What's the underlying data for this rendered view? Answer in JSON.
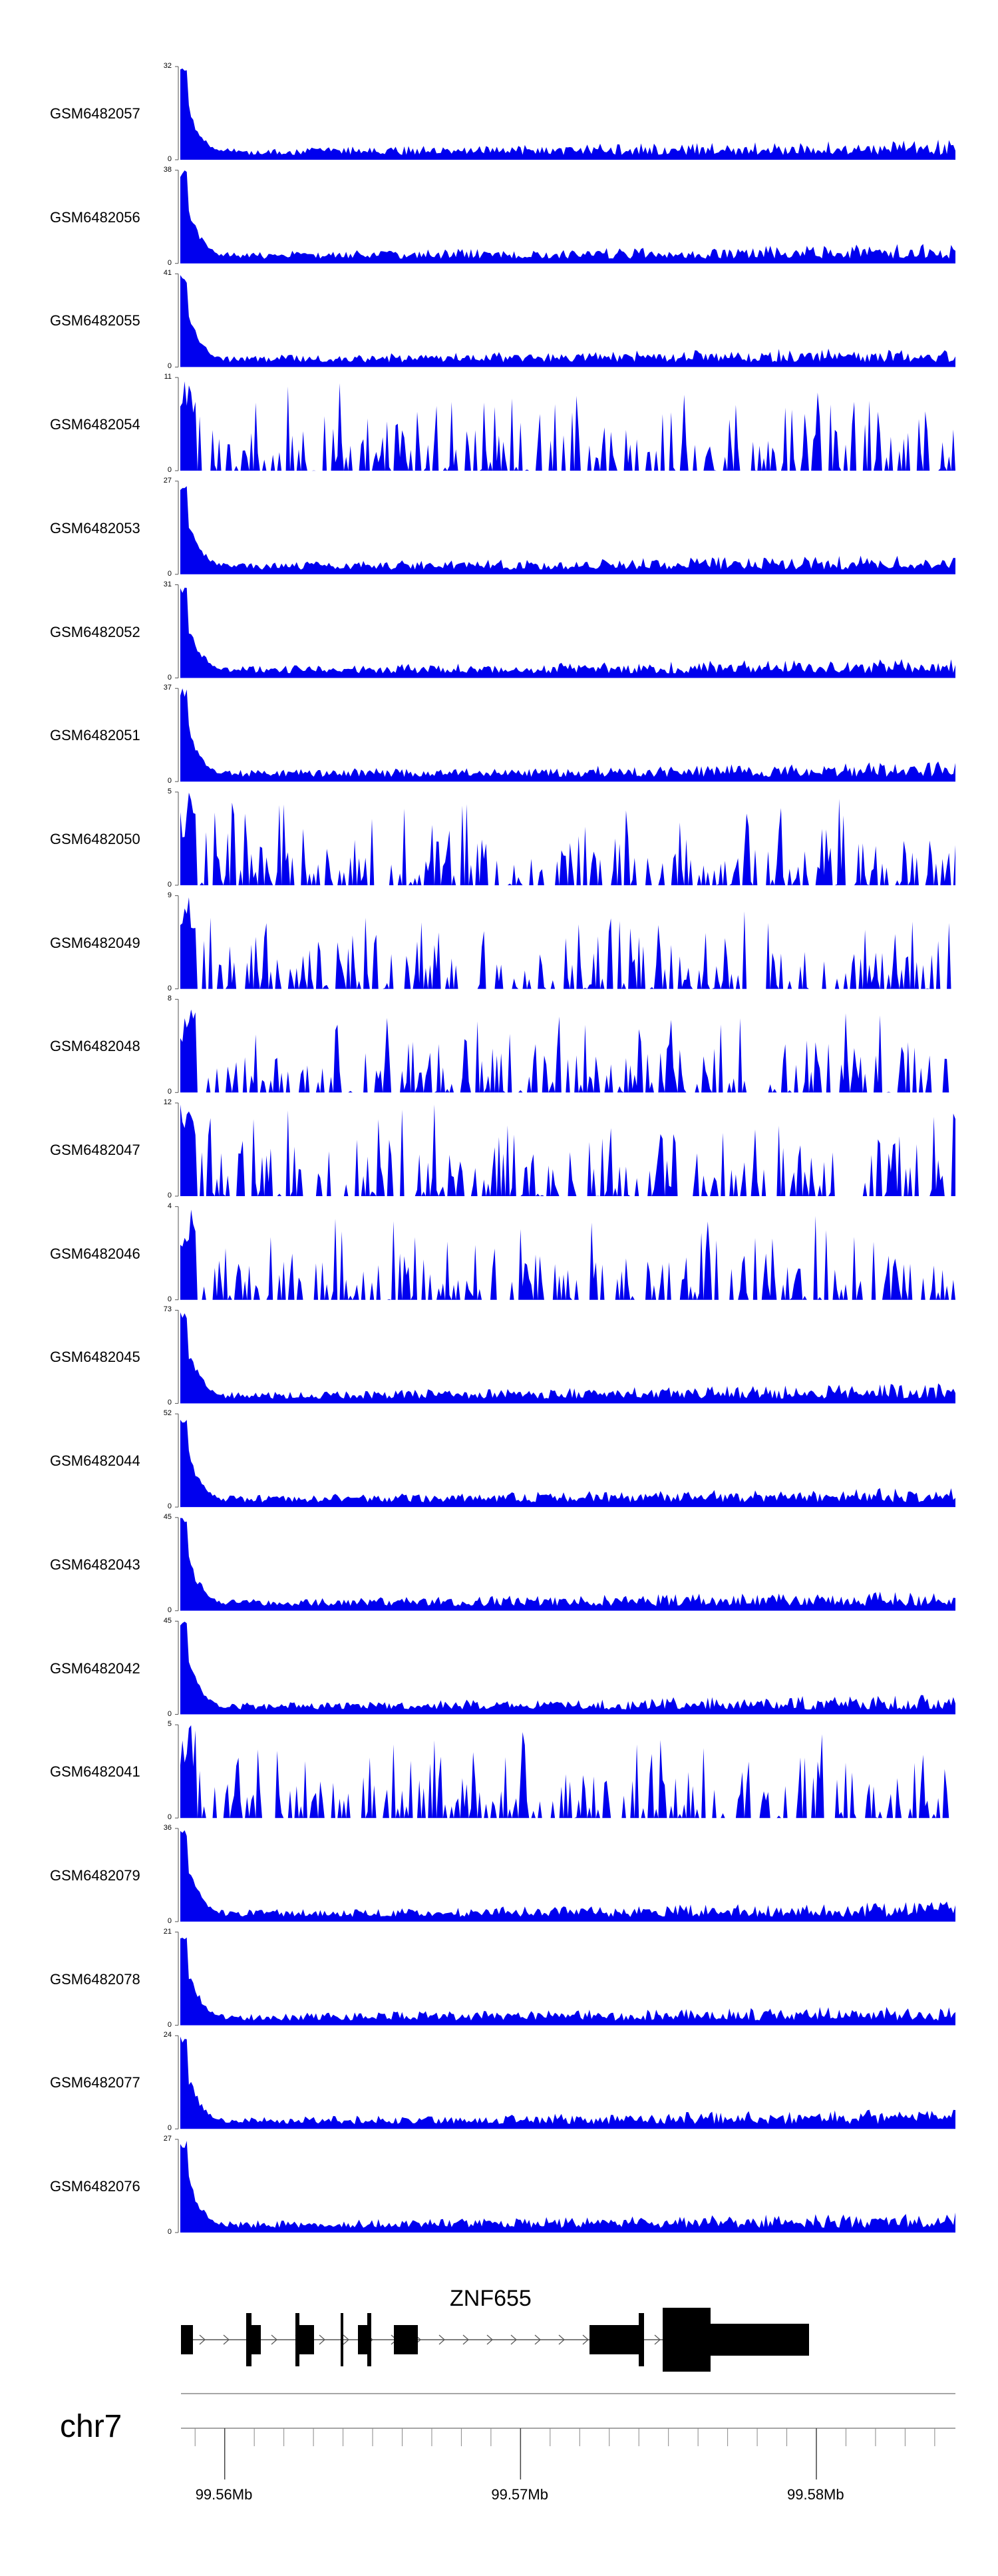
{
  "chart_data": {
    "type": "area",
    "fill_color": "#0000ee",
    "region": {
      "chromosome": "chr7",
      "start_mb": 99.5545,
      "end_mb": 99.5807
    },
    "tracks": [
      {
        "name": "GSM6482057",
        "ymax": 32,
        "ymin": 0
      },
      {
        "name": "GSM6482056",
        "ymax": 38,
        "ymin": 0
      },
      {
        "name": "GSM6482055",
        "ymax": 41,
        "ymin": 0
      },
      {
        "name": "GSM6482054",
        "ymax": 11,
        "ymin": 0
      },
      {
        "name": "GSM6482053",
        "ymax": 27,
        "ymin": 0
      },
      {
        "name": "GSM6482052",
        "ymax": 31,
        "ymin": 0
      },
      {
        "name": "GSM6482051",
        "ymax": 37,
        "ymin": 0
      },
      {
        "name": "GSM6482050",
        "ymax": 5,
        "ymin": 0
      },
      {
        "name": "GSM6482049",
        "ymax": 9,
        "ymin": 0
      },
      {
        "name": "GSM6482048",
        "ymax": 8,
        "ymin": 0
      },
      {
        "name": "GSM6482047",
        "ymax": 12,
        "ymin": 0
      },
      {
        "name": "GSM6482046",
        "ymax": 4,
        "ymin": 0
      },
      {
        "name": "GSM6482045",
        "ymax": 73,
        "ymin": 0
      },
      {
        "name": "GSM6482044",
        "ymax": 52,
        "ymin": 0
      },
      {
        "name": "GSM6482043",
        "ymax": 45,
        "ymin": 0
      },
      {
        "name": "GSM6482042",
        "ymax": 45,
        "ymin": 0
      },
      {
        "name": "GSM6482041",
        "ymax": 5,
        "ymin": 0
      },
      {
        "name": "GSM6482079",
        "ymax": 36,
        "ymin": 0
      },
      {
        "name": "GSM6482078",
        "ymax": 21,
        "ymin": 0
      },
      {
        "name": "GSM6482077",
        "ymax": 24,
        "ymin": 0
      },
      {
        "name": "GSM6482076",
        "ymax": 27,
        "ymin": 0
      }
    ],
    "gene": {
      "name": "ZNF655",
      "strand": "+"
    },
    "x_axis": {
      "major_ticks": [
        99.556,
        99.566,
        99.576
      ],
      "tick_labels": [
        "99.56Mb",
        "99.57Mb",
        "99.58Mb"
      ]
    }
  }
}
